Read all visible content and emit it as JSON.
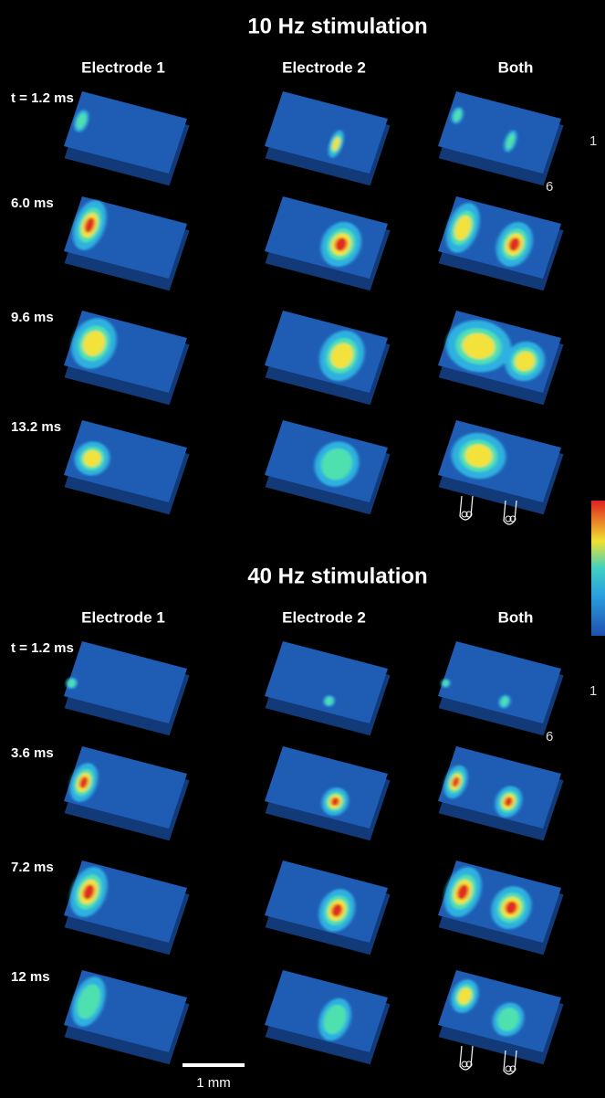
{
  "panels": [
    {
      "title": "10 Hz stimulation",
      "columns": [
        "Electrode 1",
        "Electrode 2",
        "Both"
      ],
      "times": [
        "t = 1.2 ms",
        "6.0 ms",
        "9.6 ms",
        "13.2 ms"
      ],
      "markers": [
        "1",
        "6"
      ]
    },
    {
      "title": "40 Hz stimulation",
      "columns": [
        "Electrode 1",
        "Electrode 2",
        "Both"
      ],
      "times": [
        "t = 1.2 ms",
        "3.6 ms",
        "7.2 ms",
        "12 ms"
      ],
      "markers": [
        "1",
        "6"
      ]
    }
  ],
  "scale_bar": "1 mm"
}
